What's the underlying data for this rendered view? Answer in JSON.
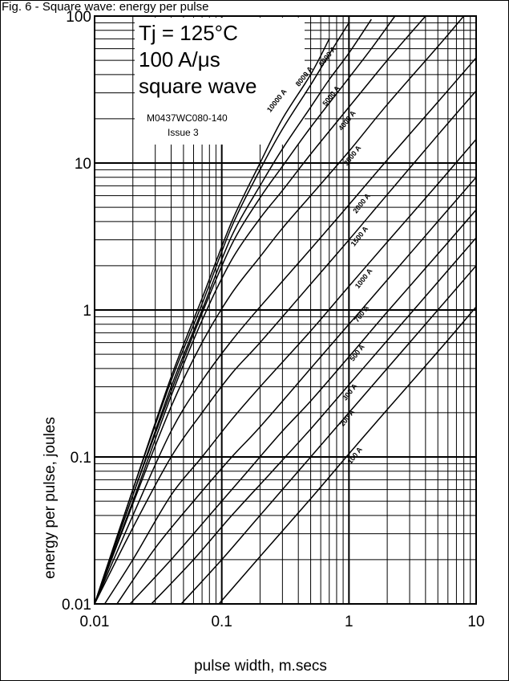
{
  "header": {
    "text": "Fig. 6 - Square wave: energy per pulse"
  },
  "chart_data": {
    "type": "line",
    "xlabel": "pulse width, m.secs",
    "ylabel": "energy per pulse, joules",
    "xscale": "log",
    "yscale": "log",
    "xlim": [
      0.01,
      10
    ],
    "ylim": [
      0.01,
      100
    ],
    "x_ticks": [
      "0.01",
      "0.1",
      "1",
      "10"
    ],
    "y_ticks": [
      "0.01",
      "0.1",
      "1",
      "10",
      "100"
    ],
    "grid": true,
    "annotations": {
      "tj": "Tj = 125°C",
      "didt": "100 A/μs",
      "wave": "square wave",
      "ref": "M0437WC080-140",
      "issue": "Issue 3"
    },
    "series": [
      {
        "name": "10000 A",
        "points": [
          [
            0.01,
            0.01
          ],
          [
            0.02,
            0.06
          ],
          [
            0.04,
            0.35
          ],
          [
            0.07,
            1.2
          ],
          [
            0.12,
            4
          ],
          [
            0.2,
            10
          ],
          [
            0.3,
            20
          ],
          [
            0.5,
            40
          ],
          [
            0.7,
            70
          ]
        ]
      },
      {
        "name": "8000 A",
        "points": [
          [
            0.01,
            0.01
          ],
          [
            0.02,
            0.06
          ],
          [
            0.04,
            0.33
          ],
          [
            0.07,
            1.1
          ],
          [
            0.12,
            3.7
          ],
          [
            0.2,
            9
          ],
          [
            0.3,
            17
          ],
          [
            0.5,
            34
          ],
          [
            0.7,
            55
          ],
          [
            1.0,
            90
          ]
        ]
      },
      {
        "name": "6000 A",
        "points": [
          [
            0.01,
            0.01
          ],
          [
            0.02,
            0.055
          ],
          [
            0.04,
            0.3
          ],
          [
            0.07,
            1.0
          ],
          [
            0.12,
            3.2
          ],
          [
            0.2,
            7
          ],
          [
            0.3,
            12.5
          ],
          [
            0.5,
            24
          ],
          [
            0.7,
            37
          ],
          [
            1.0,
            56
          ],
          [
            1.5,
            95
          ]
        ]
      },
      {
        "name": "5000 A",
        "points": [
          [
            0.01,
            0.01
          ],
          [
            0.02,
            0.055
          ],
          [
            0.04,
            0.28
          ],
          [
            0.07,
            0.95
          ],
          [
            0.12,
            2.8
          ],
          [
            0.2,
            5.8
          ],
          [
            0.3,
            9.5
          ],
          [
            0.5,
            17.5
          ],
          [
            1.0,
            38
          ],
          [
            1.5,
            60
          ],
          [
            2.3,
            100
          ]
        ]
      },
      {
        "name": "4000 A",
        "points": [
          [
            0.01,
            0.01
          ],
          [
            0.02,
            0.05
          ],
          [
            0.04,
            0.26
          ],
          [
            0.07,
            0.85
          ],
          [
            0.12,
            2.2
          ],
          [
            0.2,
            4.2
          ],
          [
            0.3,
            6.5
          ],
          [
            0.5,
            11.5
          ],
          [
            1.0,
            24
          ],
          [
            2.0,
            50
          ],
          [
            4.0,
            100
          ]
        ]
      },
      {
        "name": "3000 A",
        "points": [
          [
            0.01,
            0.01
          ],
          [
            0.02,
            0.048
          ],
          [
            0.04,
            0.22
          ],
          [
            0.07,
            0.6
          ],
          [
            0.12,
            1.3
          ],
          [
            0.2,
            2.3
          ],
          [
            0.3,
            3.6
          ],
          [
            0.5,
            6
          ],
          [
            1.0,
            12
          ],
          [
            2.0,
            25
          ],
          [
            5.0,
            62
          ],
          [
            8.0,
            100
          ]
        ]
      },
      {
        "name": "2000 A",
        "points": [
          [
            0.01,
            0.01
          ],
          [
            0.02,
            0.04
          ],
          [
            0.04,
            0.15
          ],
          [
            0.07,
            0.33
          ],
          [
            0.12,
            0.62
          ],
          [
            0.2,
            1.05
          ],
          [
            0.5,
            2.6
          ],
          [
            1.0,
            5.2
          ],
          [
            2.0,
            10.5
          ],
          [
            5.0,
            26
          ],
          [
            10,
            52
          ]
        ]
      },
      {
        "name": "1500 A",
        "points": [
          [
            0.01,
            0.01
          ],
          [
            0.02,
            0.033
          ],
          [
            0.04,
            0.1
          ],
          [
            0.07,
            0.2
          ],
          [
            0.12,
            0.37
          ],
          [
            0.2,
            0.6
          ],
          [
            0.5,
            1.5
          ],
          [
            1.0,
            3.0
          ],
          [
            2.0,
            6.1
          ],
          [
            5.0,
            15.5
          ],
          [
            10,
            31
          ]
        ]
      },
      {
        "name": "1000 A",
        "points": [
          [
            0.012,
            0.01
          ],
          [
            0.02,
            0.02
          ],
          [
            0.04,
            0.055
          ],
          [
            0.07,
            0.1
          ],
          [
            0.12,
            0.18
          ],
          [
            0.2,
            0.3
          ],
          [
            0.5,
            0.72
          ],
          [
            1.0,
            1.45
          ],
          [
            2.0,
            2.9
          ],
          [
            5.0,
            7.2
          ],
          [
            10,
            14.5
          ]
        ]
      },
      {
        "name": "700 A",
        "points": [
          [
            0.015,
            0.01
          ],
          [
            0.03,
            0.024
          ],
          [
            0.06,
            0.05
          ],
          [
            0.12,
            0.1
          ],
          [
            0.2,
            0.16
          ],
          [
            0.5,
            0.4
          ],
          [
            1.0,
            0.8
          ],
          [
            2.0,
            1.6
          ],
          [
            5.0,
            4.0
          ],
          [
            10,
            8
          ]
        ]
      },
      {
        "name": "500 A",
        "points": [
          [
            0.019,
            0.01
          ],
          [
            0.04,
            0.02
          ],
          [
            0.08,
            0.04
          ],
          [
            0.16,
            0.08
          ],
          [
            0.3,
            0.15
          ],
          [
            0.5,
            0.24
          ],
          [
            1.0,
            0.48
          ],
          [
            2.0,
            0.97
          ],
          [
            5.0,
            2.4
          ],
          [
            10,
            4.8
          ]
        ]
      },
      {
        "name": "300 A",
        "points": [
          [
            0.028,
            0.01
          ],
          [
            0.06,
            0.02
          ],
          [
            0.12,
            0.04
          ],
          [
            0.25,
            0.08
          ],
          [
            0.5,
            0.155
          ],
          [
            1.0,
            0.31
          ],
          [
            2.0,
            0.62
          ],
          [
            5.0,
            1.55
          ],
          [
            10,
            3.1
          ]
        ]
      },
      {
        "name": "200 A",
        "points": [
          [
            0.048,
            0.01
          ],
          [
            0.1,
            0.02
          ],
          [
            0.2,
            0.04
          ],
          [
            0.5,
            0.1
          ],
          [
            1.0,
            0.2
          ],
          [
            2.0,
            0.4
          ],
          [
            5.0,
            1.0
          ],
          [
            10,
            2.0
          ]
        ]
      },
      {
        "name": "100 A",
        "points": [
          [
            0.095,
            0.01
          ],
          [
            0.2,
            0.021
          ],
          [
            0.5,
            0.052
          ],
          [
            1.0,
            0.105
          ],
          [
            2.0,
            0.21
          ],
          [
            5.0,
            0.52
          ],
          [
            10,
            1.05
          ]
        ]
      }
    ],
    "curve_label_positions": [
      {
        "name": "10000 A",
        "at": [
          0.28,
          26
        ]
      },
      {
        "name": "8000 A",
        "at": [
          0.46,
          38
        ]
      },
      {
        "name": "6000 A",
        "at": [
          0.7,
          52
        ]
      },
      {
        "name": "5000 A",
        "at": [
          0.75,
          28
        ]
      },
      {
        "name": "4000 A",
        "at": [
          1.0,
          19
        ]
      },
      {
        "name": "3000 A",
        "at": [
          1.1,
          11
        ]
      },
      {
        "name": "2000 A",
        "at": [
          1.3,
          5.2
        ]
      },
      {
        "name": "1500 A",
        "at": [
          1.25,
          3.1
        ]
      },
      {
        "name": "1000 A",
        "at": [
          1.35,
          1.6
        ]
      },
      {
        "name": "700 A",
        "at": [
          1.3,
          0.92
        ]
      },
      {
        "name": "500 A",
        "at": [
          1.2,
          0.5
        ]
      },
      {
        "name": "300 A",
        "at": [
          1.05,
          0.27
        ]
      },
      {
        "name": "200 A",
        "at": [
          1.0,
          0.18
        ]
      },
      {
        "name": "100 A",
        "at": [
          1.15,
          0.1
        ]
      }
    ]
  }
}
